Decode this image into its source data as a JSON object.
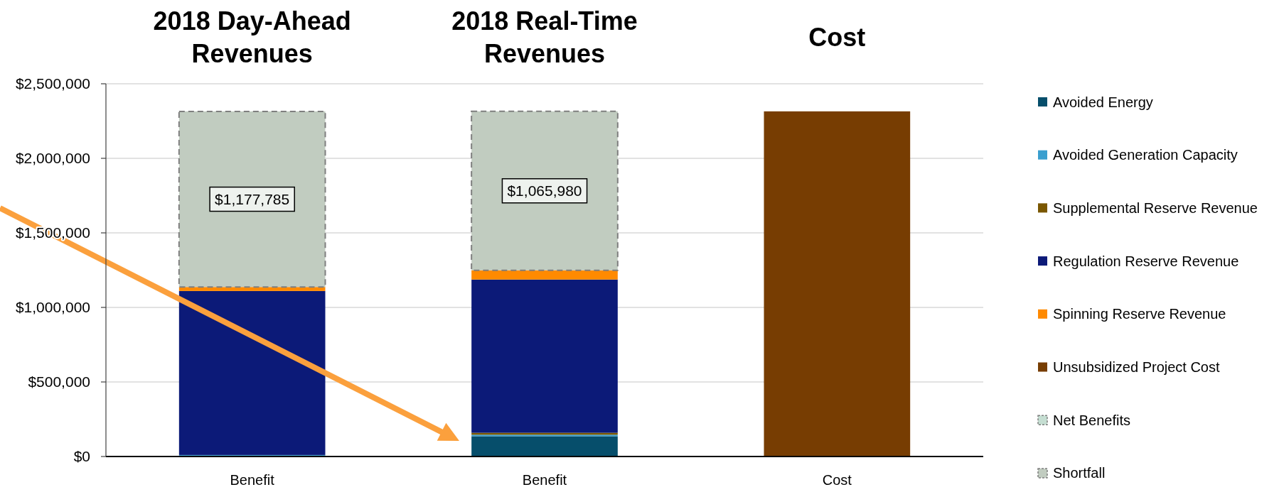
{
  "chart_data": {
    "type": "bar",
    "stacked": true,
    "categories": [
      "Benefit",
      "Benefit",
      "Cost"
    ],
    "series": [
      {
        "name": "Avoided Energy",
        "color": "#064e6b",
        "values": [
          5000,
          136000,
          null
        ]
      },
      {
        "name": "Avoided Generation Capacity",
        "color": "#3a9fcf",
        "values": [
          5000,
          10000,
          null
        ]
      },
      {
        "name": "Supplemental Reserve Revenue",
        "color": "#7a5700",
        "values": [
          null,
          13000,
          null
        ]
      },
      {
        "name": "Regulation Reserve Revenue",
        "color": "#0c1a78",
        "values": [
          1100000,
          1028000,
          null
        ]
      },
      {
        "name": "Spinning Reserve Revenue",
        "color": "#ff8a00",
        "values": [
          27000,
          62000,
          null
        ]
      },
      {
        "name": "Unsubsidized Project Cost",
        "color": "#773d02",
        "values": [
          null,
          null,
          2315000
        ]
      },
      {
        "name": "Net Benefits",
        "color": "#c5ded2",
        "line_style": "dashed",
        "values": [
          null,
          null,
          null
        ]
      },
      {
        "name": "Shortfall",
        "color": "#c1ccc0",
        "line_style": "dashed",
        "values": [
          1177785,
          1065980,
          null
        ],
        "value_labels": [
          "$1,177,785",
          "$1,065,980",
          null
        ]
      }
    ],
    "ylim": [
      0,
      2500000
    ],
    "yticks": [
      {
        "value": 0,
        "label": "$0"
      },
      {
        "value": 500000,
        "label": "$500,000"
      },
      {
        "value": 1000000,
        "label": "$1,000,000"
      },
      {
        "value": 1500000,
        "label": "$1,500,000"
      },
      {
        "value": 2000000,
        "label": "$2,000,000"
      },
      {
        "value": 2500000,
        "label": "$2,500,000"
      }
    ],
    "grid": "y",
    "legend": "right",
    "annotations": [
      "2018 Day-Ahead Revenues",
      "2018 Real-Time Revenues",
      "Cost"
    ]
  }
}
